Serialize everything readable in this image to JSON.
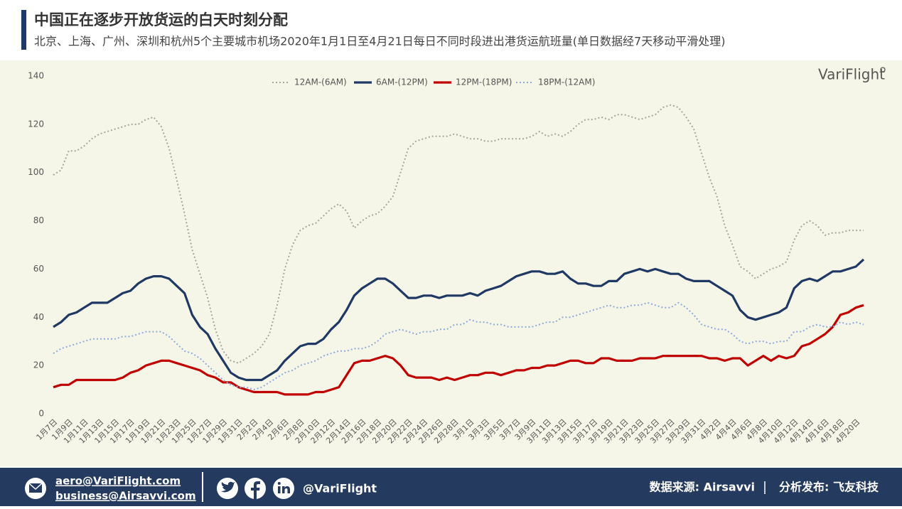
{
  "chart_data": {
    "type": "line",
    "title": "中国正在逐步开放货运的白天时刻分配",
    "subtitle": "北京、上海、广州、深圳和杭州5个主要城市机场2020年1月1日至4月21日每日不同时段进出港货运航班量(单日数据经7天移动平滑处理)",
    "logo": "VariFlight",
    "categories": [
      "1月7日",
      null,
      "1月9日",
      null,
      "1月11日",
      null,
      "1月13日",
      null,
      "1月15日",
      null,
      "1月17日",
      null,
      "1月19日",
      null,
      "1月21日",
      null,
      "1月23日",
      null,
      "1月25日",
      null,
      "1月27日",
      null,
      "1月29日",
      null,
      "1月31日",
      null,
      "2月2日",
      null,
      "2月4日",
      null,
      "2月6日",
      null,
      "2月8日",
      null,
      "2月10日",
      null,
      "2月12日",
      null,
      "2月14日",
      null,
      "2月16日",
      null,
      "2月18日",
      null,
      "2月20日",
      null,
      "2月22日",
      null,
      "2月24日",
      null,
      "2月26日",
      null,
      "2月28日",
      null,
      "3月1日",
      null,
      "3月3日",
      null,
      "3月5日",
      null,
      "3月7日",
      null,
      "3月9日",
      null,
      "3月11日",
      null,
      "3月13日",
      null,
      "3月15日",
      null,
      "3月17日",
      null,
      "3月19日",
      null,
      "3月21日",
      null,
      "3月23日",
      null,
      "3月25日",
      null,
      "3月27日",
      null,
      "3月29日",
      null,
      "3月31日",
      null,
      "4月2日",
      null,
      "4月4日",
      null,
      "4月6日",
      null,
      "4月8日",
      null,
      "4月10日",
      null,
      "4月12日",
      null,
      "4月14日",
      null,
      "4月16日",
      null,
      "4月18日",
      null,
      "4月20日",
      null
    ],
    "series": [
      {
        "name": "12AM-(6AM)",
        "color": "#a5a59d",
        "dash": "dotted",
        "values": [
          99,
          101,
          109,
          109,
          111,
          114,
          116,
          117,
          118,
          119,
          120,
          120,
          122,
          123,
          119,
          110,
          97,
          83,
          68,
          58,
          48,
          35,
          26,
          22,
          21,
          23,
          25,
          28,
          33,
          45,
          60,
          70,
          76,
          78,
          79,
          82,
          85,
          87,
          84,
          77,
          80,
          82,
          83,
          86,
          90,
          100,
          110,
          113,
          114,
          115,
          115,
          115,
          116,
          115,
          114,
          114,
          113,
          113,
          114,
          114,
          114,
          114,
          115,
          117,
          115,
          116,
          115,
          117,
          120,
          122,
          122,
          123,
          122,
          124,
          124,
          123,
          122,
          123,
          124,
          127,
          128,
          127,
          123,
          118,
          108,
          98,
          90,
          78,
          70,
          61,
          59,
          56,
          58,
          60,
          61,
          63,
          72,
          78,
          80,
          78,
          74,
          75,
          75,
          76,
          76,
          76
        ]
      },
      {
        "name": "6AM-(12PM)",
        "color": "#1f3864",
        "dash": "solid",
        "values": [
          36,
          38,
          41,
          42,
          44,
          46,
          46,
          46,
          48,
          50,
          51,
          54,
          56,
          57,
          57,
          56,
          53,
          50,
          41,
          36,
          33,
          27,
          22,
          17,
          15,
          14,
          14,
          14,
          16,
          18,
          22,
          25,
          28,
          29,
          29,
          31,
          35,
          38,
          43,
          49,
          52,
          54,
          56,
          56,
          54,
          51,
          48,
          48,
          49,
          49,
          48,
          49,
          49,
          49,
          50,
          49,
          51,
          52,
          53,
          55,
          57,
          58,
          59,
          59,
          58,
          58,
          59,
          56,
          54,
          54,
          53,
          53,
          55,
          55,
          58,
          59,
          60,
          59,
          60,
          59,
          58,
          58,
          56,
          55,
          55,
          55,
          53,
          51,
          49,
          43,
          40,
          39,
          40,
          41,
          42,
          44,
          52,
          55,
          56,
          55,
          57,
          59,
          59,
          60,
          61,
          64
        ]
      },
      {
        "name": "12PM-(18PM)",
        "color": "#c00000",
        "dash": "solid",
        "values": [
          11,
          12,
          12,
          14,
          14,
          14,
          14,
          14,
          14,
          15,
          17,
          18,
          20,
          21,
          22,
          22,
          21,
          20,
          19,
          18,
          16,
          15,
          13,
          13,
          11,
          10,
          9,
          9,
          9,
          9,
          8,
          8,
          8,
          8,
          9,
          9,
          10,
          11,
          16,
          21,
          22,
          22,
          23,
          24,
          23,
          20,
          16,
          15,
          15,
          15,
          14,
          15,
          14,
          15,
          16,
          16,
          17,
          17,
          16,
          17,
          18,
          18,
          19,
          19,
          20,
          20,
          21,
          22,
          22,
          21,
          21,
          23,
          23,
          22,
          22,
          22,
          23,
          23,
          23,
          24,
          24,
          24,
          24,
          24,
          24,
          23,
          23,
          22,
          23,
          23,
          20,
          22,
          24,
          22,
          24,
          23,
          24,
          28,
          29,
          31,
          33,
          36,
          41,
          42,
          44,
          45
        ]
      },
      {
        "name": "18PM-(12AM)",
        "color": "#8ea9db",
        "dash": "dotted",
        "values": [
          25,
          27,
          28,
          29,
          30,
          31,
          31,
          31,
          31,
          32,
          32,
          33,
          34,
          34,
          34,
          32,
          29,
          26,
          25,
          23,
          20,
          17,
          14,
          12,
          11,
          11,
          10,
          11,
          13,
          15,
          17,
          18,
          20,
          21,
          22,
          24,
          25,
          26,
          26,
          27,
          27,
          28,
          30,
          33,
          34,
          35,
          34,
          33,
          34,
          34,
          35,
          35,
          37,
          37,
          39,
          38,
          38,
          37,
          37,
          36,
          36,
          36,
          36,
          37,
          38,
          38,
          40,
          40,
          41,
          42,
          43,
          44,
          45,
          44,
          44,
          45,
          45,
          46,
          45,
          44,
          44,
          46,
          44,
          41,
          37,
          36,
          35,
          35,
          33,
          30,
          29,
          30,
          30,
          29,
          30,
          30,
          34,
          34,
          36,
          37,
          36,
          36,
          38,
          37,
          38,
          37
        ]
      }
    ],
    "ylim": [
      0,
      140
    ],
    "yticks": [
      0,
      20,
      40,
      60,
      80,
      100,
      120,
      140
    ],
    "grid": false
  },
  "footer": {
    "emails": [
      "aero@VariFlight.com",
      "business@Airsavvi.com"
    ],
    "handle": "@VariFlight",
    "source": "数据来源: Airsavvi",
    "publisher": "分析发布: 飞友科技"
  }
}
